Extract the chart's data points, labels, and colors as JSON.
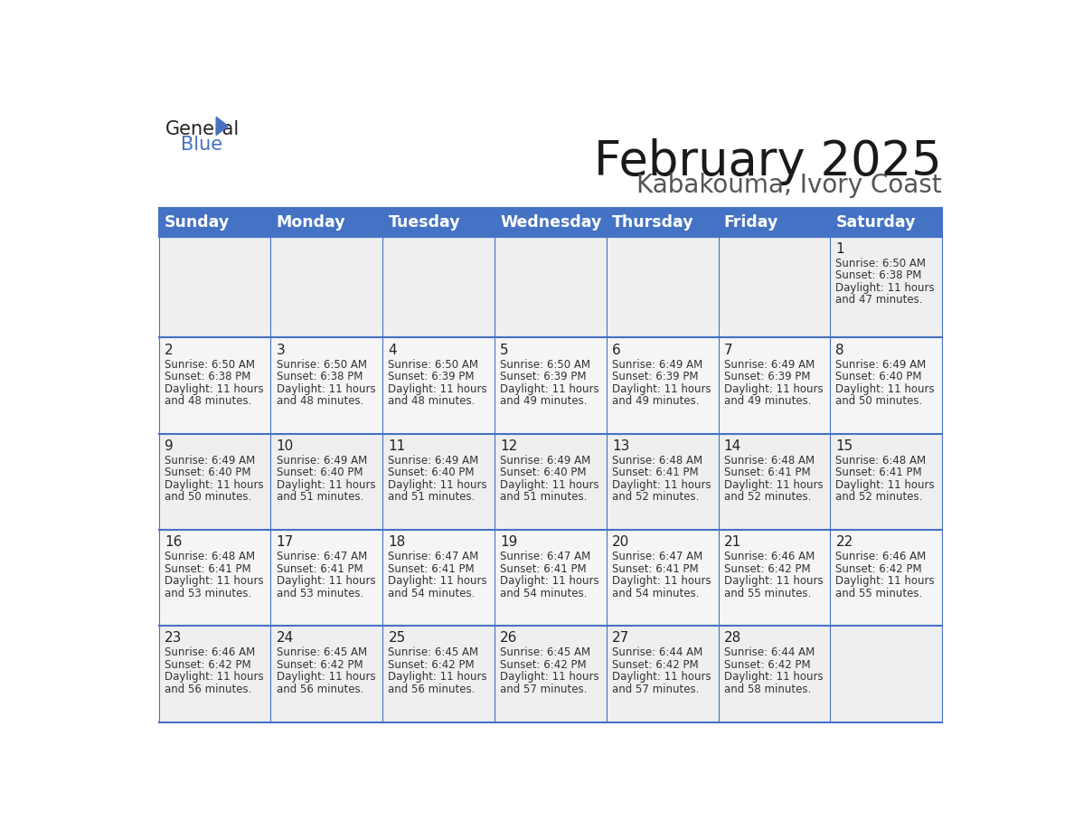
{
  "title": "February 2025",
  "subtitle": "Kabakouma, Ivory Coast",
  "header_bg": "#4472C4",
  "header_text_color": "#FFFFFF",
  "cell_bg_row0": "#EFEFEF",
  "cell_bg_row1": "#F5F5F5",
  "cell_bg_row2": "#EFEFEF",
  "cell_bg_row3": "#F5F5F5",
  "cell_bg_row4": "#EFEFEF",
  "cell_border_color": "#4472C4",
  "day_headers": [
    "Sunday",
    "Monday",
    "Tuesday",
    "Wednesday",
    "Thursday",
    "Friday",
    "Saturday"
  ],
  "days": [
    {
      "day": 1,
      "col": 6,
      "row": 0,
      "sunrise": "6:50 AM",
      "sunset": "6:38 PM",
      "daylight_min": "47"
    },
    {
      "day": 2,
      "col": 0,
      "row": 1,
      "sunrise": "6:50 AM",
      "sunset": "6:38 PM",
      "daylight_min": "48"
    },
    {
      "day": 3,
      "col": 1,
      "row": 1,
      "sunrise": "6:50 AM",
      "sunset": "6:38 PM",
      "daylight_min": "48"
    },
    {
      "day": 4,
      "col": 2,
      "row": 1,
      "sunrise": "6:50 AM",
      "sunset": "6:39 PM",
      "daylight_min": "48"
    },
    {
      "day": 5,
      "col": 3,
      "row": 1,
      "sunrise": "6:50 AM",
      "sunset": "6:39 PM",
      "daylight_min": "49"
    },
    {
      "day": 6,
      "col": 4,
      "row": 1,
      "sunrise": "6:49 AM",
      "sunset": "6:39 PM",
      "daylight_min": "49"
    },
    {
      "day": 7,
      "col": 5,
      "row": 1,
      "sunrise": "6:49 AM",
      "sunset": "6:39 PM",
      "daylight_min": "49"
    },
    {
      "day": 8,
      "col": 6,
      "row": 1,
      "sunrise": "6:49 AM",
      "sunset": "6:40 PM",
      "daylight_min": "50"
    },
    {
      "day": 9,
      "col": 0,
      "row": 2,
      "sunrise": "6:49 AM",
      "sunset": "6:40 PM",
      "daylight_min": "50"
    },
    {
      "day": 10,
      "col": 1,
      "row": 2,
      "sunrise": "6:49 AM",
      "sunset": "6:40 PM",
      "daylight_min": "51"
    },
    {
      "day": 11,
      "col": 2,
      "row": 2,
      "sunrise": "6:49 AM",
      "sunset": "6:40 PM",
      "daylight_min": "51"
    },
    {
      "day": 12,
      "col": 3,
      "row": 2,
      "sunrise": "6:49 AM",
      "sunset": "6:40 PM",
      "daylight_min": "51"
    },
    {
      "day": 13,
      "col": 4,
      "row": 2,
      "sunrise": "6:48 AM",
      "sunset": "6:41 PM",
      "daylight_min": "52"
    },
    {
      "day": 14,
      "col": 5,
      "row": 2,
      "sunrise": "6:48 AM",
      "sunset": "6:41 PM",
      "daylight_min": "52"
    },
    {
      "day": 15,
      "col": 6,
      "row": 2,
      "sunrise": "6:48 AM",
      "sunset": "6:41 PM",
      "daylight_min": "52"
    },
    {
      "day": 16,
      "col": 0,
      "row": 3,
      "sunrise": "6:48 AM",
      "sunset": "6:41 PM",
      "daylight_min": "53"
    },
    {
      "day": 17,
      "col": 1,
      "row": 3,
      "sunrise": "6:47 AM",
      "sunset": "6:41 PM",
      "daylight_min": "53"
    },
    {
      "day": 18,
      "col": 2,
      "row": 3,
      "sunrise": "6:47 AM",
      "sunset": "6:41 PM",
      "daylight_min": "54"
    },
    {
      "day": 19,
      "col": 3,
      "row": 3,
      "sunrise": "6:47 AM",
      "sunset": "6:41 PM",
      "daylight_min": "54"
    },
    {
      "day": 20,
      "col": 4,
      "row": 3,
      "sunrise": "6:47 AM",
      "sunset": "6:41 PM",
      "daylight_min": "54"
    },
    {
      "day": 21,
      "col": 5,
      "row": 3,
      "sunrise": "6:46 AM",
      "sunset": "6:42 PM",
      "daylight_min": "55"
    },
    {
      "day": 22,
      "col": 6,
      "row": 3,
      "sunrise": "6:46 AM",
      "sunset": "6:42 PM",
      "daylight_min": "55"
    },
    {
      "day": 23,
      "col": 0,
      "row": 4,
      "sunrise": "6:46 AM",
      "sunset": "6:42 PM",
      "daylight_min": "56"
    },
    {
      "day": 24,
      "col": 1,
      "row": 4,
      "sunrise": "6:45 AM",
      "sunset": "6:42 PM",
      "daylight_min": "56"
    },
    {
      "day": 25,
      "col": 2,
      "row": 4,
      "sunrise": "6:45 AM",
      "sunset": "6:42 PM",
      "daylight_min": "56"
    },
    {
      "day": 26,
      "col": 3,
      "row": 4,
      "sunrise": "6:45 AM",
      "sunset": "6:42 PM",
      "daylight_min": "57"
    },
    {
      "day": 27,
      "col": 4,
      "row": 4,
      "sunrise": "6:44 AM",
      "sunset": "6:42 PM",
      "daylight_min": "57"
    },
    {
      "day": 28,
      "col": 5,
      "row": 4,
      "sunrise": "6:44 AM",
      "sunset": "6:42 PM",
      "daylight_min": "58"
    }
  ],
  "num_rows": 5,
  "num_cols": 7
}
